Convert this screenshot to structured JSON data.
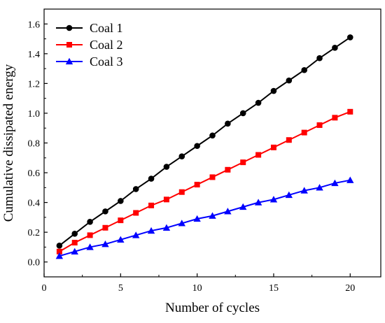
{
  "chart_data": {
    "type": "line",
    "xlabel": "Number of cycles",
    "ylabel": "Cumulative dissipated energy",
    "xlim": [
      0,
      22
    ],
    "ylim": [
      -0.1,
      1.7
    ],
    "xticks": [
      0,
      5,
      10,
      15,
      20
    ],
    "xtick_labels": [
      "0",
      "5",
      "10",
      "15",
      "20"
    ],
    "yticks": [
      0.0,
      0.2,
      0.4,
      0.6,
      0.8,
      1.0,
      1.2,
      1.4,
      1.6
    ],
    "ytick_labels": [
      "0.0",
      "0.2",
      "0.4",
      "0.6",
      "0.8",
      "1.0",
      "1.2",
      "1.4",
      "1.6"
    ],
    "grid": false,
    "legend_position": "top-left",
    "x": [
      1,
      2,
      3,
      4,
      5,
      6,
      7,
      8,
      9,
      10,
      11,
      12,
      13,
      14,
      15,
      16,
      17,
      18,
      19,
      20
    ],
    "series": [
      {
        "name": "Coal 1",
        "color": "#000000",
        "marker": "circle",
        "values": [
          0.11,
          0.19,
          0.27,
          0.34,
          0.41,
          0.49,
          0.56,
          0.64,
          0.71,
          0.78,
          0.85,
          0.93,
          1.0,
          1.07,
          1.15,
          1.22,
          1.29,
          1.37,
          1.44,
          1.51
        ]
      },
      {
        "name": "Coal 2",
        "color": "#ff0000",
        "marker": "square",
        "values": [
          0.07,
          0.13,
          0.18,
          0.23,
          0.28,
          0.33,
          0.38,
          0.42,
          0.47,
          0.52,
          0.57,
          0.62,
          0.67,
          0.72,
          0.77,
          0.82,
          0.87,
          0.92,
          0.97,
          1.01
        ]
      },
      {
        "name": "Coal 3",
        "color": "#0000ff",
        "marker": "triangle",
        "values": [
          0.04,
          0.07,
          0.1,
          0.12,
          0.15,
          0.18,
          0.21,
          0.23,
          0.26,
          0.29,
          0.31,
          0.34,
          0.37,
          0.4,
          0.42,
          0.45,
          0.48,
          0.5,
          0.53,
          0.55
        ]
      }
    ]
  }
}
